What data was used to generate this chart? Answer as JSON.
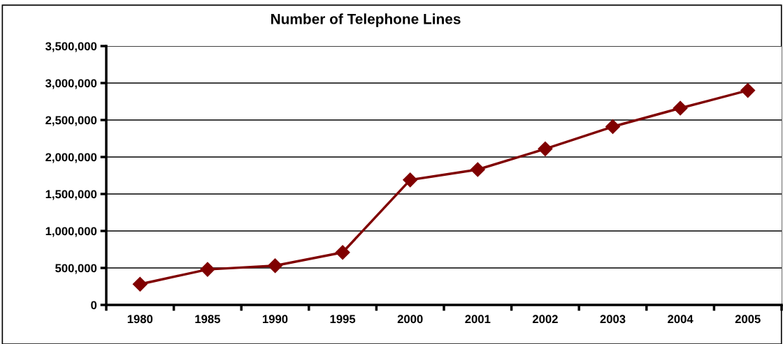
{
  "chart_data": {
    "type": "line",
    "title": "Number of Telephone Lines",
    "categories": [
      "1980",
      "1985",
      "1990",
      "1995",
      "2000",
      "2001",
      "2002",
      "2003",
      "2004",
      "2005"
    ],
    "series": [
      {
        "color": "#800000",
        "values": [
          280000,
          480000,
          530000,
          710000,
          1690000,
          1830000,
          2110000,
          2410000,
          2660000,
          2900000
        ]
      }
    ],
    "ylim": [
      0,
      3500000
    ],
    "yticks": [
      {
        "value": 0,
        "label": "0"
      },
      {
        "value": 500000,
        "label": "500,000"
      },
      {
        "value": 1000000,
        "label": "1,000,000"
      },
      {
        "value": 1500000,
        "label": "1,500,000"
      },
      {
        "value": 2000000,
        "label": "2,000,000"
      },
      {
        "value": 2500000,
        "label": "2,500,000"
      },
      {
        "value": 3000000,
        "label": "3,000,000"
      },
      {
        "value": 3500000,
        "label": "3,500,000"
      }
    ],
    "grid": "y",
    "marker": "diamond",
    "line_style": "solid"
  }
}
